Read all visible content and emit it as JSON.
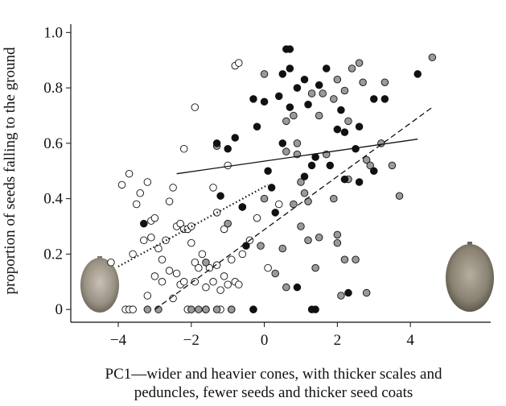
{
  "chart_data": {
    "type": "scatter",
    "y_label": "proportion of seeds falling to the ground",
    "x_label": [
      "PC1—wider and heavier cones, with thicker scales and",
      "peduncles, fewer seeds and thicker seed coats"
    ],
    "xlim": [
      -5.3,
      6.2
    ],
    "ylim": [
      -0.046,
      1.03
    ],
    "xticks": [
      {
        "value": -4,
        "label": "−4"
      },
      {
        "value": -2,
        "label": "−2"
      },
      0,
      2,
      4
    ],
    "yticks": [
      0,
      0.2,
      0.4,
      0.6,
      0.8,
      {
        "value": 1,
        "label": "1.0"
      }
    ],
    "series": [
      {
        "color": "#ffffff",
        "x": [
          -4.2,
          -3.9,
          -3.7,
          -3.5,
          -3.4,
          -3.6,
          -3.3,
          -3.2,
          -3.1,
          -3.0,
          -3.1,
          -2.9,
          -2.8,
          -2.7,
          -2.6,
          -2.5,
          -2.4,
          -2.3,
          -2.2,
          -2.1,
          -2.0,
          -2.0,
          -1.9,
          -1.8,
          -1.7,
          -1.5,
          -1.3,
          -1.1,
          -0.9,
          -0.8,
          -0.6,
          -0.4,
          -0.2,
          0.4,
          -0.8,
          -0.7,
          -1.9,
          -2.2,
          -1.0,
          -1.4,
          -3.8,
          -3.7,
          -3.6,
          -2.1,
          -1.6,
          -1.2,
          -0.9,
          -3.2,
          -2.6,
          -2.4,
          -2.3,
          -1.9,
          -1.6,
          -1.4,
          -1.2,
          -1.0,
          -2.8,
          -3.0,
          -2.2,
          -1.1,
          -2.5,
          -0.7,
          -1.3,
          0.1
        ],
        "values": [
          0.17,
          0.45,
          0.49,
          0.38,
          0.42,
          0.2,
          0.25,
          0.46,
          0.32,
          0.33,
          0.26,
          0.22,
          0.18,
          0.25,
          0.39,
          0.44,
          0.3,
          0.31,
          0.29,
          0.29,
          0.3,
          0.24,
          0.17,
          0.15,
          0.2,
          0.15,
          0.16,
          0.12,
          0.18,
          0.1,
          0.2,
          0.25,
          0.33,
          0.38,
          0.88,
          0.89,
          0.73,
          0.58,
          0.52,
          0.44,
          0,
          0,
          0,
          0,
          0,
          0,
          0,
          0.05,
          0.14,
          0.13,
          0.09,
          0.1,
          0.08,
          0.1,
          0.07,
          0.09,
          0.1,
          0.12,
          0.1,
          0.29,
          0.04,
          0.09,
          0.35,
          0.15
        ]
      },
      {
        "color": "#9a9a9a",
        "x": [
          -3.2,
          -2.9,
          -2.0,
          -1.8,
          -1.6,
          -1.3,
          -0.9,
          -1.0,
          -1.3,
          -1.6,
          0.0,
          0.6,
          0.8,
          0.9,
          1.0,
          1.1,
          1.2,
          1.3,
          1.6,
          1.5,
          1.7,
          1.9,
          2.0,
          2.2,
          2.3,
          2.4,
          2.6,
          2.7,
          2.8,
          3.2,
          3.3,
          3.7,
          3.5,
          2.0,
          2.2,
          1.5,
          1.2,
          1.0,
          0.8,
          0.5,
          0.3,
          -0.1,
          -0.3,
          0.6,
          2.5,
          2.8,
          2.1,
          1.9,
          2.3,
          0.0,
          0.6,
          4.6,
          2.0,
          1.4,
          0.9,
          2.9,
          -0.6
        ],
        "values": [
          0,
          0,
          0,
          0,
          0,
          0,
          0,
          0.31,
          0.59,
          0.17,
          0.85,
          0.68,
          0.7,
          0.56,
          0.46,
          0.42,
          0.39,
          0.78,
          0.78,
          0.7,
          0.56,
          0.76,
          0.83,
          0.79,
          0.68,
          0.87,
          0.89,
          0.82,
          0.54,
          0.6,
          0.82,
          0.41,
          0.52,
          0.27,
          0.18,
          0.26,
          0.25,
          0.3,
          0.38,
          0.22,
          0.13,
          0.23,
          0,
          0.08,
          0.18,
          0.06,
          0.05,
          0.4,
          0.47,
          0.4,
          0.57,
          0.91,
          0.24,
          0.15,
          0.6,
          0.52,
          0.37
        ]
      },
      {
        "color": "#111111",
        "x": [
          -3.3,
          -1.2,
          -1.0,
          -1.3,
          -0.8,
          -0.6,
          -0.3,
          -0.2,
          0.1,
          0.0,
          0.5,
          0.6,
          0.7,
          0.7,
          0.9,
          1.1,
          1.2,
          1.5,
          1.7,
          2.1,
          2.0,
          2.2,
          2.5,
          2.6,
          3.0,
          3.3,
          3.0,
          4.2,
          1.1,
          0.4,
          0.5,
          1.4,
          1.3,
          2.3,
          0.9,
          -0.3,
          2.2,
          1.3,
          0.2,
          2.6,
          1.4,
          -0.5,
          0.3,
          1.8,
          0.7
        ],
        "values": [
          0.31,
          0.41,
          0.58,
          0.6,
          0.62,
          0.37,
          0.76,
          0.66,
          0.5,
          0.75,
          0.85,
          0.94,
          0.94,
          0.87,
          0.8,
          0.83,
          0.74,
          0.81,
          0.87,
          0.72,
          0.65,
          0.64,
          0.58,
          0.46,
          0.76,
          0.76,
          0.5,
          0.85,
          0.48,
          0.77,
          0.6,
          0,
          0,
          0.06,
          0.08,
          0,
          0.47,
          0.52,
          0.44,
          0.66,
          0.55,
          0.23,
          0.35,
          0.52,
          0.73
        ]
      }
    ],
    "fits": [
      {
        "style": "solid",
        "x": [
          -2.4,
          4.2
        ],
        "values": [
          0.49,
          0.615
        ]
      },
      {
        "style": "dotted",
        "x": [
          -4.0,
          0.1
        ],
        "values": [
          0.155,
          0.45
        ]
      },
      {
        "style": "dashed",
        "x": [
          -3.0,
          4.6
        ],
        "values": [
          0.0,
          0.73
        ]
      }
    ]
  }
}
